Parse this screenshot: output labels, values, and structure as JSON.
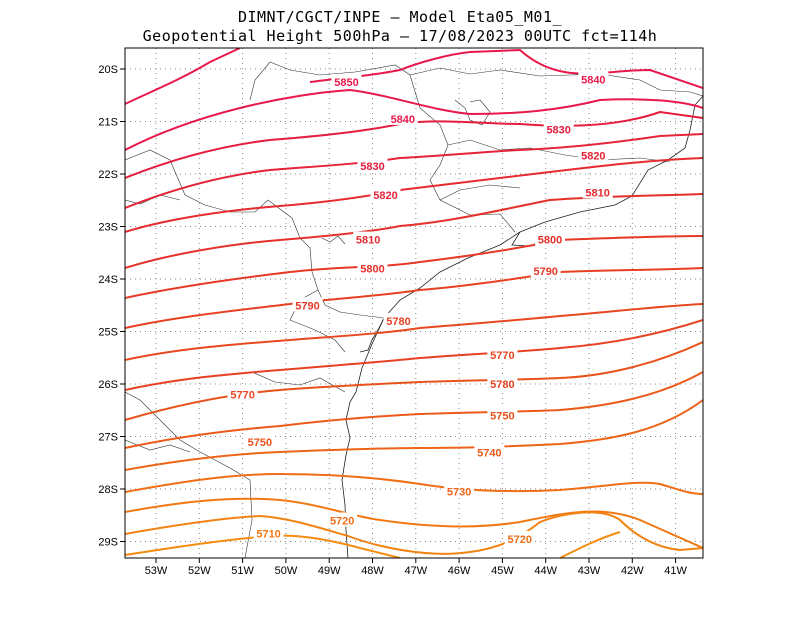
{
  "title_line1": "DIMNT/CGCT/INPE  —   Model Eta05_M01_",
  "title_line2": "Geopotential Height 500hPa  —   17/08/2023 00UTC fct=114h",
  "lat_ticks": [
    "20S",
    "21S",
    "22S",
    "23S",
    "24S",
    "25S",
    "26S",
    "27S",
    "28S",
    "29S"
  ],
  "lon_ticks": [
    "53W",
    "52W",
    "51W",
    "50W",
    "49W",
    "48W",
    "47W",
    "46W",
    "45W",
    "44W",
    "43W",
    "42W",
    "41W"
  ],
  "contour_labels": [
    {
      "text": "5850",
      "lon": -48.6,
      "lat": -20.25,
      "color": "#e8194a"
    },
    {
      "text": "5840",
      "lon": -42.9,
      "lat": -20.2,
      "color": "#e8194a"
    },
    {
      "text": "5840",
      "lon": -47.3,
      "lat": -20.95,
      "color": "#e8194a"
    },
    {
      "text": "5830",
      "lon": -43.7,
      "lat": -21.15,
      "color": "#e51c3e"
    },
    {
      "text": "5830",
      "lon": -48.0,
      "lat": -21.85,
      "color": "#e51c3e"
    },
    {
      "text": "5820",
      "lon": -42.9,
      "lat": -21.65,
      "color": "#e52438"
    },
    {
      "text": "5820",
      "lon": -47.7,
      "lat": -22.4,
      "color": "#e52438"
    },
    {
      "text": "5810",
      "lon": -42.8,
      "lat": -22.35,
      "color": "#e52a30"
    },
    {
      "text": "5810",
      "lon": -48.1,
      "lat": -23.25,
      "color": "#e52a30"
    },
    {
      "text": "5800",
      "lon": -43.9,
      "lat": -23.25,
      "color": "#e6302a"
    },
    {
      "text": "5800",
      "lon": -48.0,
      "lat": -23.8,
      "color": "#e6302a"
    },
    {
      "text": "5790",
      "lon": -44.0,
      "lat": -23.85,
      "color": "#e63826"
    },
    {
      "text": "5790",
      "lon": -49.5,
      "lat": -24.5,
      "color": "#e63826"
    },
    {
      "text": "5780",
      "lon": -47.4,
      "lat": -24.8,
      "color": "#e84022"
    },
    {
      "text": "5770",
      "lon": -45.0,
      "lat": -25.45,
      "color": "#e84820"
    },
    {
      "text": "5770",
      "lon": -51.0,
      "lat": -26.2,
      "color": "#e84820"
    },
    {
      "text": "5780",
      "lon": -45.0,
      "lat": -26.0,
      "color": "#e84022"
    },
    {
      "text": "5750",
      "lon": -45.0,
      "lat": -26.6,
      "color": "#ea521c"
    },
    {
      "text": "5750",
      "lon": -50.6,
      "lat": -27.1,
      "color": "#ea521c"
    },
    {
      "text": "5740",
      "lon": -45.3,
      "lat": -27.3,
      "color": "#ec5a1a"
    },
    {
      "text": "5730",
      "lon": -46.0,
      "lat": -28.05,
      "color": "#ee6418"
    },
    {
      "text": "5720",
      "lon": -48.7,
      "lat": -28.6,
      "color": "#f06e16"
    },
    {
      "text": "5720",
      "lon": -44.6,
      "lat": -28.95,
      "color": "#f06e16"
    },
    {
      "text": "5710",
      "lon": -50.4,
      "lat": -28.85,
      "color": "#f27814"
    }
  ]
}
